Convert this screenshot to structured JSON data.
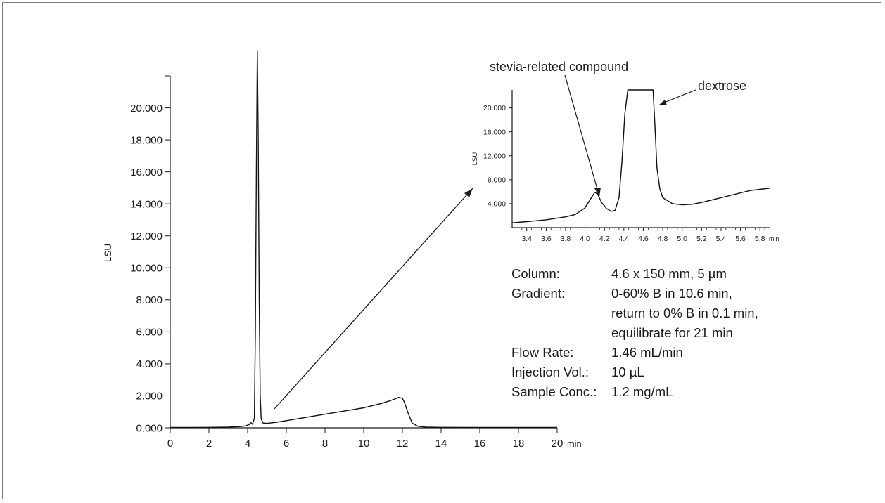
{
  "chart_data": [
    {
      "type": "line",
      "ylabel": "LSU",
      "xunit": "min",
      "xlim": [
        0,
        20
      ],
      "ylim": [
        0,
        22.0
      ],
      "x_ticks": [
        "0",
        "2",
        "4",
        "6",
        "8",
        "10",
        "12",
        "14",
        "16",
        "18",
        "20"
      ],
      "y_ticks": [
        "0.000",
        "2.000",
        "4.000",
        "6.000",
        "8.000",
        "10.000",
        "12.000",
        "14.000",
        "16.000",
        "18.000",
        "20.000"
      ],
      "series": [
        {
          "x": [
            0,
            1,
            2,
            3,
            3.6,
            3.9,
            4.1,
            4.15,
            4.25,
            4.35,
            4.4,
            4.45,
            4.5,
            4.55,
            4.6,
            4.65,
            4.7,
            4.8,
            5.0,
            5.5,
            6,
            7,
            8,
            9,
            10,
            10.5,
            11,
            11.5,
            11.8,
            12.0,
            12.1,
            12.3,
            12.5,
            12.8,
            13.2,
            14,
            16,
            18,
            20
          ],
          "y": [
            0.02,
            0.02,
            0.03,
            0.05,
            0.08,
            0.12,
            0.22,
            0.35,
            0.22,
            0.6,
            6.0,
            16.0,
            24.0,
            18.0,
            8.0,
            2.0,
            0.55,
            0.3,
            0.28,
            0.35,
            0.45,
            0.65,
            0.85,
            1.05,
            1.25,
            1.4,
            1.55,
            1.75,
            1.9,
            1.85,
            1.6,
            0.9,
            0.3,
            0.1,
            0.05,
            0.03,
            0.02,
            0.02,
            0.02
          ]
        }
      ]
    },
    {
      "type": "line",
      "ylabel": "LSU",
      "xunit": "min",
      "xlim": [
        3.25,
        5.9
      ],
      "ylim": [
        0,
        23.0
      ],
      "x_ticks": [
        "3.4",
        "3.6",
        "3.8",
        "4.0",
        "4.2",
        "4.4",
        "4.6",
        "4.8",
        "5.0",
        "5.2",
        "5.4",
        "5.6",
        "5.8"
      ],
      "y_ticks": [
        "4.000",
        "8.000",
        "12.000",
        "16.000",
        "20.000"
      ],
      "series": [
        {
          "x": [
            3.25,
            3.4,
            3.6,
            3.8,
            3.9,
            4.0,
            4.05,
            4.1,
            4.13,
            4.17,
            4.22,
            4.27,
            4.31,
            4.35,
            4.38,
            4.41,
            4.44,
            4.7,
            4.72,
            4.74,
            4.77,
            4.8,
            4.85,
            4.9,
            5.0,
            5.1,
            5.2,
            5.3,
            5.4,
            5.5,
            5.6,
            5.7,
            5.8,
            5.9
          ],
          "y": [
            0.8,
            1.0,
            1.3,
            1.8,
            2.2,
            3.3,
            4.6,
            5.9,
            5.6,
            4.2,
            3.2,
            2.7,
            2.9,
            5.0,
            11.0,
            19.0,
            23.0,
            23.0,
            17.0,
            10.0,
            6.5,
            5.0,
            4.5,
            4.0,
            3.8,
            3.9,
            4.2,
            4.6,
            5.0,
            5.4,
            5.8,
            6.2,
            6.4,
            6.6
          ]
        }
      ]
    }
  ],
  "annotations": {
    "stevia": "stevia-related compound",
    "dextrose": "dextrose"
  },
  "params": [
    {
      "label": "Column:",
      "values": [
        "4.6 x 150 mm, 5 µm"
      ]
    },
    {
      "label": "Gradient:",
      "values": [
        "0-60% B in 10.6 min,",
        "return to 0% B in 0.1 min,",
        "equilibrate for 21 min"
      ]
    },
    {
      "label": "Flow Rate:",
      "values": [
        "1.46 mL/min"
      ]
    },
    {
      "label": "Injection Vol.:",
      "values": [
        "10 µL"
      ]
    },
    {
      "label": "Sample Conc.:",
      "values": [
        "1.2 mg/mL"
      ]
    }
  ]
}
